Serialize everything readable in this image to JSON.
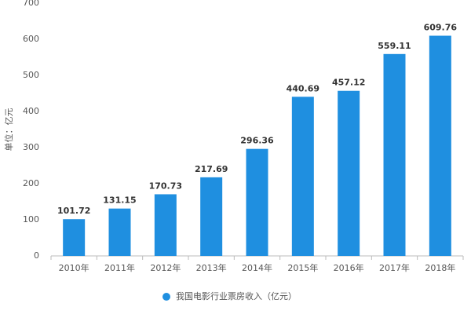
{
  "chart_data": {
    "type": "bar",
    "y_axis_label": "单位：亿元",
    "categories": [
      "2010年",
      "2011年",
      "2012年",
      "2013年",
      "2014年",
      "2015年",
      "2016年",
      "2017年",
      "2018年"
    ],
    "series": [
      {
        "name": "我国电影行业票房收入（亿元）",
        "color": "#1f8fe0",
        "values": [
          101.72,
          131.15,
          170.73,
          217.69,
          296.36,
          440.69,
          457.12,
          559.11,
          609.76
        ]
      }
    ],
    "ylim": [
      0,
      700
    ],
    "yticks": [
      0,
      100,
      200,
      300,
      400,
      500,
      600,
      700
    ],
    "grid": false
  }
}
